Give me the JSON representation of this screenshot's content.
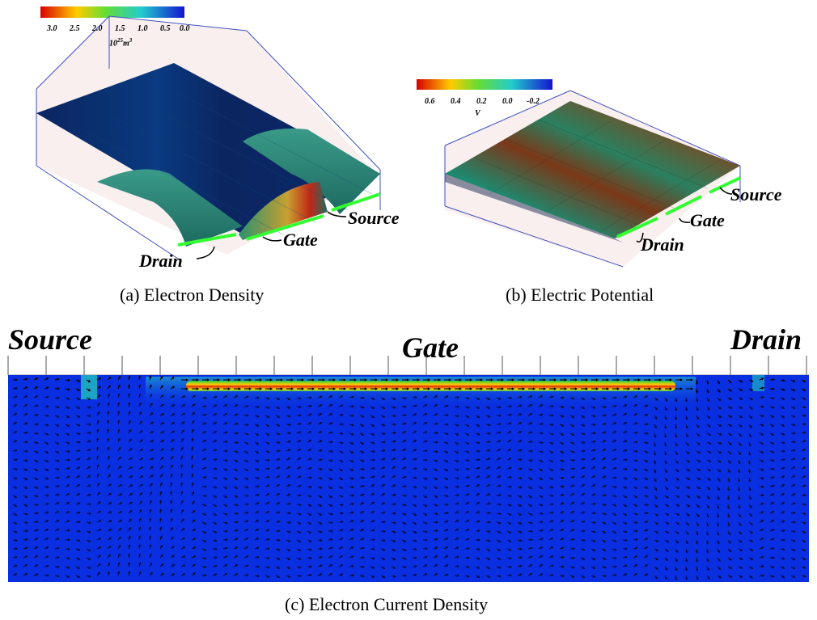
{
  "panel_a": {
    "colorbar": {
      "ticks": [
        "3.0",
        "2.5",
        "2.0",
        "1.5",
        "1.0",
        "0.5",
        "0.0"
      ],
      "unit_base": "10",
      "unit_exp": "25",
      "unit_rest": "m",
      "unit_exp2": "3"
    },
    "labels": {
      "drain": "Drain",
      "gate": "Gate",
      "source": "Source"
    },
    "caption": "(a) Electron Density"
  },
  "panel_b": {
    "colorbar": {
      "ticks": [
        "0.6",
        "0.4",
        "0.2",
        "0.0",
        "-0.2"
      ],
      "unit": "V"
    },
    "labels": {
      "drain": "Drain",
      "gate": "Gate",
      "source": "Source"
    },
    "caption": "(b) Electric Potential"
  },
  "panel_c": {
    "labels": {
      "source": "Source",
      "gate": "Gate",
      "drain": "Drain"
    },
    "caption": "(c) Electron Current Density"
  },
  "colors": {
    "field_blue": "#0a2fe0",
    "surface_dark": "#0b2a6a",
    "surface_teal": "#2a8a7a",
    "contact_green": "#33ff33",
    "channel_red": "#e03010"
  }
}
